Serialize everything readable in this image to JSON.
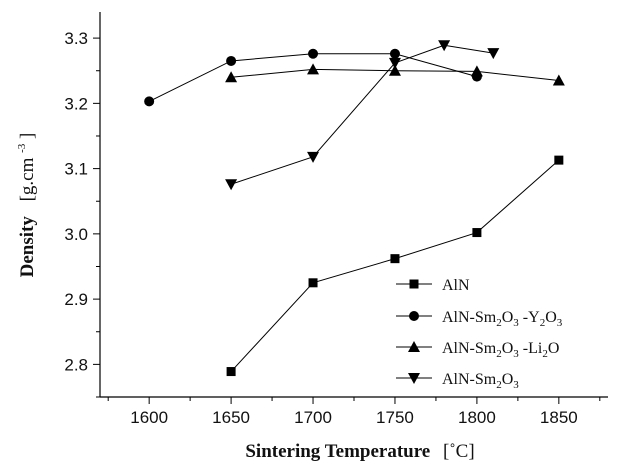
{
  "chart_data": {
    "type": "line",
    "xlabel_bold": "Sintering Temperature",
    "xlabel_unit": "[˚C]",
    "ylabel_bold": "Density",
    "ylabel_unit_pre": "[g.cm",
    "ylabel_unit_sup": "-3",
    "ylabel_unit_post": "]",
    "xlim": [
      1570,
      1880
    ],
    "ylim": [
      2.75,
      3.34
    ],
    "x_ticks": [
      1600,
      1650,
      1700,
      1750,
      1800,
      1850
    ],
    "y_ticks": [
      2.8,
      2.9,
      3.0,
      3.1,
      3.2,
      3.3
    ],
    "x_tick_labels": [
      "1600",
      "1650",
      "1700",
      "1750",
      "1800",
      "1850"
    ],
    "y_tick_labels": [
      "2.8",
      "2.9",
      "3.0",
      "3.1",
      "3.2",
      "3.3"
    ],
    "grid": false,
    "legend_position": "lower-right",
    "series": [
      {
        "name": "AlN",
        "marker": "square",
        "x": [
          1650,
          1700,
          1750,
          1800,
          1850
        ],
        "y": [
          2.789,
          2.925,
          2.962,
          3.002,
          3.113
        ]
      },
      {
        "name": "AlN-Sm2O3 -Y2O3",
        "marker": "circle",
        "x": [
          1600,
          1650,
          1700,
          1750,
          1800
        ],
        "y": [
          3.203,
          3.265,
          3.276,
          3.276,
          3.241
        ]
      },
      {
        "name": "AlN-Sm2O3 -Li2O",
        "marker": "triangle-up",
        "x": [
          1650,
          1700,
          1750,
          1800,
          1850
        ],
        "y": [
          3.24,
          3.252,
          3.25,
          3.249,
          3.235
        ]
      },
      {
        "name": "AlN-Sm2O3",
        "marker": "triangle-down",
        "x": [
          1650,
          1700,
          1750,
          1780,
          1810
        ],
        "y": [
          3.076,
          3.118,
          3.262,
          3.289,
          3.277
        ]
      }
    ],
    "legend": [
      {
        "parts": [
          [
            "AlN",
            ""
          ]
        ]
      },
      {
        "parts": [
          [
            "AlN-Sm",
            ""
          ],
          [
            "2",
            "sub"
          ],
          [
            "O",
            ""
          ],
          [
            "3",
            "sub"
          ],
          [
            " -Y",
            ""
          ],
          [
            "2",
            "sub"
          ],
          [
            "O",
            ""
          ],
          [
            "3",
            "sub"
          ]
        ]
      },
      {
        "parts": [
          [
            "AlN-Sm",
            ""
          ],
          [
            "2",
            "sub"
          ],
          [
            "O",
            ""
          ],
          [
            "3",
            "sub"
          ],
          [
            " -Li",
            ""
          ],
          [
            "2",
            "sub"
          ],
          [
            "O",
            ""
          ]
        ]
      },
      {
        "parts": [
          [
            "AlN-Sm",
            ""
          ],
          [
            "2",
            "sub"
          ],
          [
            "O",
            ""
          ],
          [
            "3",
            "sub"
          ]
        ]
      }
    ]
  }
}
